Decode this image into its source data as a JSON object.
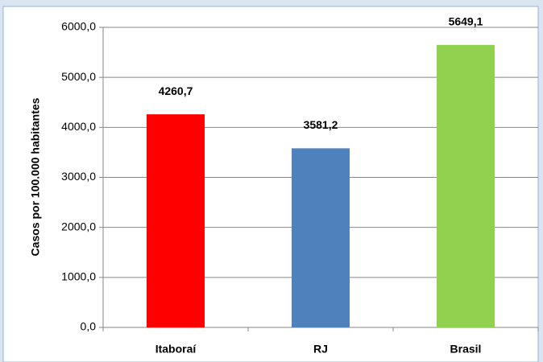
{
  "chart_data": {
    "type": "bar",
    "y_label": "Casos por 100.000 habitantes",
    "categories": [
      "Itaboraí",
      "RJ",
      "Brasil"
    ],
    "series": [
      {
        "name": null,
        "values": [
          4260.7,
          3581.2,
          5649.1
        ],
        "value_labels": [
          "4260,7",
          "3581,2",
          "5649,1"
        ],
        "colors": [
          "#ff0000",
          "#4f81bd",
          "#92d050"
        ]
      }
    ],
    "ylim": [
      0,
      6000
    ],
    "yticks": [
      {
        "value": 0,
        "label": "0,0"
      },
      {
        "value": 1000,
        "label": "1000,0"
      },
      {
        "value": 2000,
        "label": "2000,0"
      },
      {
        "value": 3000,
        "label": "3000,0"
      },
      {
        "value": 4000,
        "label": "4000,0"
      },
      {
        "value": 5000,
        "label": "5000,0"
      },
      {
        "value": 6000,
        "label": "6000,0"
      }
    ],
    "grid": true
  }
}
